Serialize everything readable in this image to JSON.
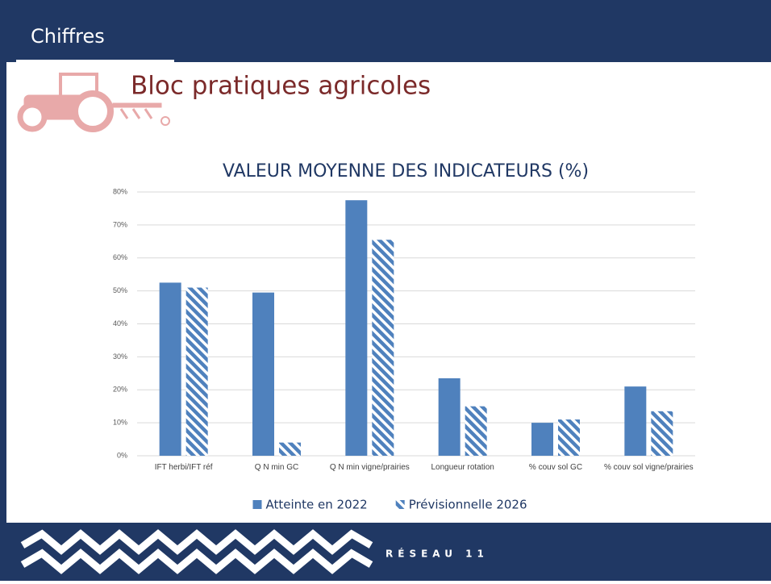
{
  "header": {
    "section": "Chiffres",
    "title": "Bloc pratiques agricoles"
  },
  "chart_data": {
    "type": "bar",
    "title": "VALEUR MOYENNE DES INDICATEURS (%)",
    "categories": [
      "IFT herbi/IFT réf",
      "Q N min GC",
      "Q N min vigne/prairies",
      "Longueur rotation",
      "% couv sol GC",
      "% couv sol vigne/prairies"
    ],
    "series": [
      {
        "name": "Atteinte en 2022",
        "color": "#4f81bd",
        "fill": "solid",
        "values": [
          52.5,
          49.5,
          77.5,
          23.5,
          10,
          21
        ]
      },
      {
        "name": "Prévisionnelle 2026",
        "color": "#4f81bd",
        "fill": "hatch",
        "values": [
          51,
          4,
          65.5,
          15,
          11,
          13.5
        ]
      }
    ],
    "ylim": [
      0,
      80
    ],
    "yticks": [
      {
        "value": 0,
        "label": "0%"
      },
      {
        "value": 10,
        "label": "10%"
      },
      {
        "value": 20,
        "label": "20%"
      },
      {
        "value": 30,
        "label": "30%"
      },
      {
        "value": 40,
        "label": "40%"
      },
      {
        "value": 50,
        "label": "50%"
      },
      {
        "value": 60,
        "label": "60%"
      },
      {
        "value": 70,
        "label": "70%"
      },
      {
        "value": 80,
        "label": "80%"
      }
    ],
    "grid": true,
    "legend": "bottom"
  },
  "footer": {
    "logo": "RÉSEAU 11"
  }
}
